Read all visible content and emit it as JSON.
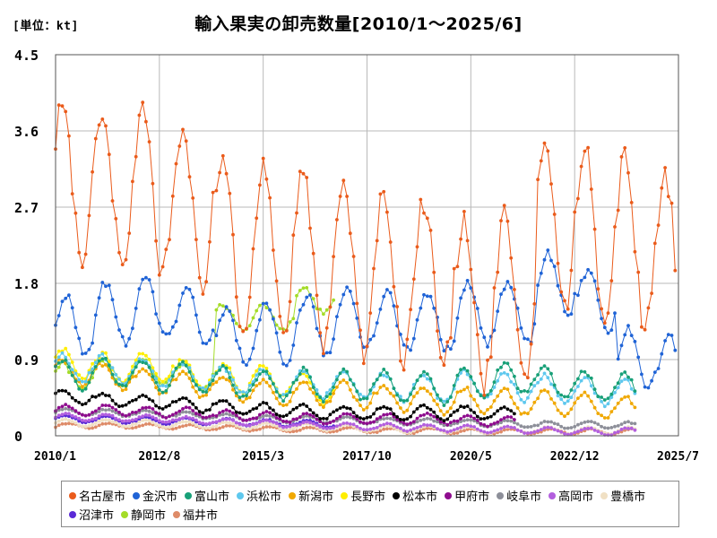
{
  "unit_label": "[単位：kt]",
  "title": "輸入果実の卸売数量[2010/1～2025/6]",
  "chart_data": {
    "type": "line",
    "title": "輸入果実の卸売数量[2010/1～2025/6]",
    "ylabel": "単位：kt",
    "xlabel": "",
    "ylim": [
      0,
      4.5
    ],
    "y_ticks": [
      "0",
      "0.9",
      "1.8",
      "2.7",
      "3.6",
      "4.5"
    ],
    "x_ticks": [
      "2010/1",
      "2012/8",
      "2015/3",
      "2017/10",
      "2020/5",
      "2022/12",
      "2025/7"
    ],
    "x_range": [
      "2010/1",
      "2025/7"
    ],
    "grid": true,
    "legend_position": "bottom",
    "series": [
      {
        "name": "名古屋市",
        "color": "#ea5b1b",
        "start": "2010/1",
        "end": "2025/6",
        "amplitude": 1.0,
        "peak_month": 3,
        "yearly_levels": [
          3.0,
          2.9,
          2.9,
          2.7,
          2.3,
          2.2,
          2.1,
          2.0,
          1.9,
          1.8,
          1.6,
          1.6,
          2.5,
          2.4,
          2.3,
          2.1
        ]
      },
      {
        "name": "金沢市",
        "color": "#1f63d6",
        "start": "2010/1",
        "end": "2025/6",
        "amplitude": 0.35,
        "peak_month": 4,
        "yearly_levels": [
          1.3,
          1.45,
          1.5,
          1.4,
          1.15,
          1.2,
          1.3,
          1.4,
          1.35,
          1.35,
          1.45,
          1.45,
          1.8,
          1.6,
          0.9,
          0.85
        ]
      },
      {
        "name": "富山市",
        "color": "#18a078",
        "start": "2010/1",
        "end": "2024/6",
        "amplitude": 0.18,
        "peak_month": 3,
        "yearly_levels": [
          0.72,
          0.75,
          0.7,
          0.68,
          0.62,
          0.6,
          0.6,
          0.6,
          0.58,
          0.57,
          0.62,
          0.68,
          0.62,
          0.58,
          0.55
        ]
      },
      {
        "name": "浜松市",
        "color": "#5ec8ee",
        "start": "2010/1",
        "end": "2024/6",
        "amplitude": 0.16,
        "peak_month": 3,
        "yearly_levels": [
          0.8,
          0.78,
          0.75,
          0.7,
          0.65,
          0.62,
          0.62,
          0.6,
          0.58,
          0.55,
          0.6,
          0.58,
          0.55,
          0.52,
          0.5
        ]
      },
      {
        "name": "新潟市",
        "color": "#f0a800",
        "start": "2010/1",
        "end": "2024/6",
        "amplitude": 0.15,
        "peak_month": 3,
        "yearly_levels": [
          0.75,
          0.7,
          0.65,
          0.6,
          0.55,
          0.5,
          0.5,
          0.48,
          0.45,
          0.42,
          0.42,
          0.4,
          0.38,
          0.35,
          0.32
        ]
      },
      {
        "name": "長野市",
        "color": "#ffee00",
        "start": "2010/1",
        "end": "2016/12",
        "amplitude": 0.18,
        "peak_month": 3,
        "yearly_levels": [
          0.85,
          0.8,
          0.8,
          0.72,
          0.68,
          0.65,
          0.55
        ]
      },
      {
        "name": "松本市",
        "color": "#000000",
        "start": "2010/1",
        "end": "2021/6",
        "amplitude": 0.08,
        "peak_month": 3,
        "yearly_levels": [
          0.45,
          0.42,
          0.4,
          0.36,
          0.33,
          0.3,
          0.28,
          0.27,
          0.27,
          0.27,
          0.27,
          0.25
        ]
      },
      {
        "name": "甲府市",
        "color": "#8e0c8e",
        "start": "2010/1",
        "end": "2021/6",
        "amplitude": 0.06,
        "peak_month": 4,
        "yearly_levels": [
          0.3,
          0.3,
          0.28,
          0.27,
          0.24,
          0.22,
          0.2,
          0.2,
          0.2,
          0.2,
          0.18,
          0.16
        ]
      },
      {
        "name": "岐阜市",
        "color": "#8d8f99",
        "start": "2010/1",
        "end": "2024/6",
        "amplitude": 0.04,
        "peak_month": 4,
        "yearly_levels": [
          0.28,
          0.27,
          0.26,
          0.24,
          0.22,
          0.2,
          0.19,
          0.18,
          0.17,
          0.16,
          0.15,
          0.14,
          0.13,
          0.13,
          0.12
        ]
      },
      {
        "name": "高岡市",
        "color": "#b35fde",
        "start": "2010/1",
        "end": "2024/6",
        "amplitude": 0.04,
        "peak_month": 4,
        "yearly_levels": [
          0.22,
          0.21,
          0.2,
          0.18,
          0.16,
          0.14,
          0.12,
          0.11,
          0.1,
          0.09,
          0.08,
          0.07,
          0.06,
          0.05,
          0.05
        ]
      },
      {
        "name": "豊橋市",
        "color": "#f0e0c4",
        "start": "2010/1",
        "end": "2024/6",
        "amplitude": 0.04,
        "peak_month": 4,
        "yearly_levels": [
          0.15,
          0.15,
          0.14,
          0.13,
          0.12,
          0.11,
          0.1,
          0.09,
          0.08,
          0.08,
          0.07,
          0.07,
          0.06,
          0.06,
          0.06
        ]
      },
      {
        "name": "沼津市",
        "color": "#5a2ad6",
        "start": "2010/1",
        "end": "2016/12",
        "amplitude": 0.04,
        "peak_month": 4,
        "yearly_levels": [
          0.2,
          0.19,
          0.18,
          0.17,
          0.16,
          0.15,
          0.14
        ]
      },
      {
        "name": "静岡市",
        "color": "#a4dc28",
        "start": "2010/1",
        "end": "2016/12",
        "amplitude": 0.15,
        "peak_month": 3,
        "yearly_levels": [
          0.7,
          0.72,
          0.75,
          0.7,
          1.4,
          1.4,
          1.6
        ]
      },
      {
        "name": "福井市",
        "color": "#de8b68",
        "start": "2010/1",
        "end": "2024/6",
        "amplitude": 0.03,
        "peak_month": 5,
        "yearly_levels": [
          0.12,
          0.12,
          0.11,
          0.1,
          0.09,
          0.08,
          0.07,
          0.07,
          0.06,
          0.06,
          0.05,
          0.05,
          0.05,
          0.05,
          0.05
        ]
      }
    ]
  }
}
